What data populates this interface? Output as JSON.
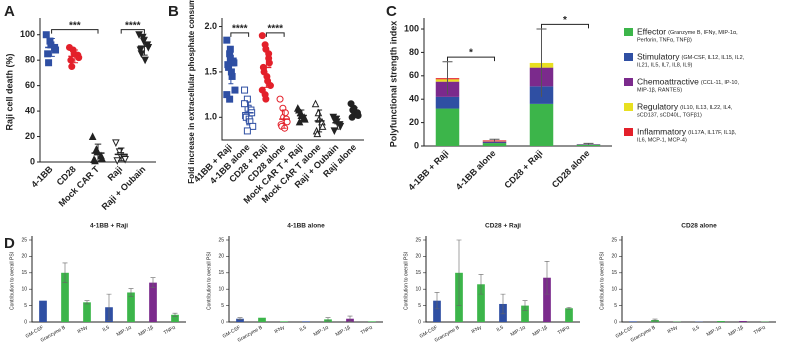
{
  "chart_data": [
    {
      "type": "dot",
      "panel": "A",
      "y_label": "Raji cell death (%)",
      "categories": [
        "4-1BB",
        "CD28",
        "Mock CAR T",
        "Raji",
        "Raji + Oubain"
      ],
      "values": [
        [
          100,
          95,
          92,
          90,
          88,
          85,
          78
        ],
        [
          90,
          88,
          85,
          84,
          82,
          80,
          75
        ],
        [
          20,
          10,
          8,
          5,
          3,
          2,
          1
        ],
        [
          15,
          8,
          5,
          3,
          2,
          1
        ],
        [
          100,
          98,
          95,
          92,
          90,
          88,
          85,
          80
        ]
      ],
      "means": [
        90,
        83,
        7,
        6,
        91
      ],
      "sds": [
        7,
        5,
        7,
        5,
        7
      ],
      "colors": [
        "#2f4fa3",
        "#e3202a",
        "#222222",
        "#222222",
        "#222222"
      ],
      "markers": [
        "square",
        "circle",
        "triangle",
        "triangle-down",
        "triangle-down"
      ],
      "filled": [
        true,
        true,
        true,
        false,
        true
      ],
      "brackets": [
        {
          "from": 0,
          "to": 2,
          "y": 104,
          "label": "***"
        },
        {
          "from": 3,
          "to": 4,
          "y": 104,
          "label": "****"
        }
      ],
      "ylim": [
        0,
        110
      ],
      "yticks": [
        0,
        20,
        40,
        60,
        80,
        100
      ]
    },
    {
      "type": "dot",
      "panel": "B",
      "y_label": "Fold increase in extracellular phosphate consumption",
      "categories": [
        "41BB + Raji",
        "4-1BB alone",
        "CD28 + Raji",
        "CD28 alone",
        "Mock CAR T + Raji",
        "Mock CAR T alone",
        "Raji + Oubain",
        "Raji alone"
      ],
      "values": [
        [
          1.85,
          1.7,
          1.65,
          1.62,
          1.6,
          1.58,
          1.55,
          1.5,
          1.45,
          1.3,
          1.25,
          1.2,
          1.75
        ],
        [
          1.3,
          1.2,
          1.1,
          1.08,
          1.05,
          1.02,
          1.0,
          0.98,
          0.95,
          0.9,
          1.15,
          0.85
        ],
        [
          1.9,
          1.8,
          1.75,
          1.7,
          1.6,
          1.55,
          1.5,
          1.45,
          1.4,
          1.35,
          1.3,
          1.25,
          1.2,
          1.65
        ],
        [
          1.2,
          1.1,
          1.0,
          0.98,
          0.95,
          0.92,
          0.9,
          0.88,
          1.05
        ],
        [
          1.1,
          1.05,
          1.02,
          1.0,
          0.98,
          1.08,
          0.95
        ],
        [
          1.15,
          1.05,
          0.98,
          0.95,
          0.9,
          0.85,
          0.82
        ],
        [
          1.0,
          0.98,
          0.95,
          0.92,
          0.9,
          0.85,
          0.96
        ],
        [
          1.15,
          1.1,
          1.05,
          1.05,
          1.02,
          1.0,
          1.08
        ]
      ],
      "means": [
        1.57,
        1.05,
        1.55,
        0.98,
        1.02,
        0.96,
        0.94,
        1.06
      ],
      "sds": [
        0.2,
        0.12,
        0.22,
        0.1,
        0.06,
        0.12,
        0.07,
        0.05
      ],
      "colors": [
        "#2f4fa3",
        "#2f4fa3",
        "#e3202a",
        "#e3202a",
        "#222222",
        "#222222",
        "#222222",
        "#222222"
      ],
      "markers": [
        "square",
        "square",
        "circle",
        "circle",
        "triangle",
        "triangle",
        "triangle-down",
        "circle"
      ],
      "filled": [
        true,
        false,
        true,
        false,
        true,
        false,
        true,
        true
      ],
      "brackets": [
        {
          "from": 0,
          "to": 1,
          "y": 1.93,
          "label": "****"
        },
        {
          "from": 2,
          "to": 3,
          "y": 1.93,
          "label": "****"
        }
      ],
      "ylim": [
        0.75,
        2.05
      ],
      "yticks": [
        {
          "value": 1,
          "label": "1.0"
        },
        {
          "value": 1.5,
          "label": "1.5"
        },
        {
          "value": 2,
          "label": "2.0"
        }
      ]
    },
    {
      "type": "stacked-bar",
      "panel": "C",
      "y_label": "Polyfunctional strength index",
      "categories": [
        "4-1BB + Raji",
        "4-1BB alone",
        "CD28 + Raji",
        "CD28 alone"
      ],
      "series": [
        {
          "name": "Effector",
          "detail": [
            "(Granzyme B, IFNγ, MIP-1α,",
            "Perforin, TNFα, TNFβ)"
          ],
          "color": "#3cb54a",
          "values": [
            32,
            2.5,
            36,
            1
          ]
        },
        {
          "name": "Stimulatory",
          "detail": [
            "(GM-CSF, IL12, IL15, IL2,",
            "IL21, IL5, IL7, IL8, IL9)"
          ],
          "color": "#2f4fa3",
          "values": [
            10,
            0.5,
            15,
            0.3
          ]
        },
        {
          "name": "Chemoattractive",
          "detail": [
            "(CCL-11, IP-10,",
            "MIP-1β, RANTES)"
          ],
          "color": "#7b2a8c",
          "values": [
            13,
            0.8,
            16,
            0.3
          ]
        },
        {
          "name": "Regulatory",
          "detail": [
            "(IL10, IL13, IL22, IL4,",
            "sCD137, sCD40L, TGFβ1)"
          ],
          "color": "#e8e020",
          "values": [
            2,
            0.3,
            4,
            0.1
          ]
        },
        {
          "name": "Inflammatory",
          "detail": [
            "(IL17A, IL17F, IL1β,",
            "IL6, MCP-1, MCP-4)"
          ],
          "color": "#e3202a",
          "values": [
            1,
            0.7,
            0,
            0
          ]
        }
      ],
      "errors": [
        14,
        1,
        29,
        0.5
      ],
      "brackets": [
        {
          "from": 0,
          "to": 1,
          "y": 76,
          "label": "*"
        },
        {
          "from": 2,
          "to": 3,
          "y": 104,
          "label": "*"
        }
      ],
      "ylim": [
        0,
        106
      ],
      "yticks": [
        0,
        20,
        40,
        60,
        80,
        100
      ]
    },
    {
      "type": "bar",
      "panel": "D",
      "title": "4-1BB + Raji",
      "y_label": "Contribution to overall PSI",
      "categories": [
        "GM-CSF",
        "Granzyme B",
        "IFNγ",
        "IL5",
        "MIP-1α",
        "MIP-1β",
        "TNFα"
      ],
      "values": [
        6.5,
        15,
        6,
        4.5,
        9,
        12,
        2.2
      ],
      "errors": [
        null,
        3,
        0.5,
        4,
        1.2,
        1.5,
        0.5
      ],
      "colors": [
        "#2f4fa3",
        "#3cb54a",
        "#3cb54a",
        "#2f4fa3",
        "#3cb54a",
        "#7b2a8c",
        "#3cb54a"
      ],
      "ylim": [
        0,
        25
      ],
      "yticks": [
        0,
        5,
        10,
        15,
        20,
        25
      ]
    },
    {
      "type": "bar",
      "title": "4-1BB alone",
      "y_label": "Contribution to overall PSI",
      "categories": [
        "GM-CSF",
        "Granzyme B",
        "IFNγ",
        "IL5",
        "MIP-1α",
        "MIP-1β",
        "TNFα"
      ],
      "values": [
        1,
        1.3,
        0.2,
        0.2,
        0.8,
        1,
        0.2
      ],
      "errors": [
        0.3,
        null,
        null,
        null,
        0.5,
        0.8,
        null
      ],
      "colors": [
        "#2f4fa3",
        "#3cb54a",
        "#3cb54a",
        "#2f4fa3",
        "#3cb54a",
        "#7b2a8c",
        "#3cb54a"
      ],
      "ylim": [
        0,
        25
      ],
      "yticks": [
        0,
        5,
        10,
        15,
        20,
        25
      ]
    },
    {
      "type": "bar",
      "title": "CD28 + Raji",
      "y_label": "Contribution to overall PSI",
      "categories": [
        "GM-CSF",
        "Granzyme B",
        "IFNγ",
        "IL5",
        "MIP-1α",
        "MIP-1β",
        "TNFα"
      ],
      "values": [
        6.5,
        15,
        11.5,
        5.5,
        5,
        13.5,
        4.2
      ],
      "errors": [
        2.5,
        10,
        3,
        3,
        1.5,
        5,
        0.3
      ],
      "colors": [
        "#2f4fa3",
        "#3cb54a",
        "#3cb54a",
        "#2f4fa3",
        "#3cb54a",
        "#7b2a8c",
        "#3cb54a"
      ],
      "ylim": [
        0,
        25
      ],
      "yticks": [
        0,
        5,
        10,
        15,
        20,
        25
      ]
    },
    {
      "type": "bar",
      "title": "CD28 alone",
      "y_label": "Contribution to overall PSI",
      "categories": [
        "GM-CSF",
        "Granzyme B",
        "IFNγ",
        "IL5",
        "MIP-1α",
        "MIP-1β",
        "TNFα"
      ],
      "values": [
        0.2,
        0.6,
        0.1,
        0.1,
        0.3,
        0.3,
        0.1
      ],
      "errors": [
        null,
        0.3,
        null,
        null,
        null,
        null,
        null
      ],
      "colors": [
        "#2f4fa3",
        "#3cb54a",
        "#3cb54a",
        "#2f4fa3",
        "#3cb54a",
        "#7b2a8c",
        "#3cb54a"
      ],
      "ylim": [
        0,
        25
      ],
      "yticks": [
        0,
        5,
        10,
        15,
        20,
        25
      ]
    }
  ]
}
